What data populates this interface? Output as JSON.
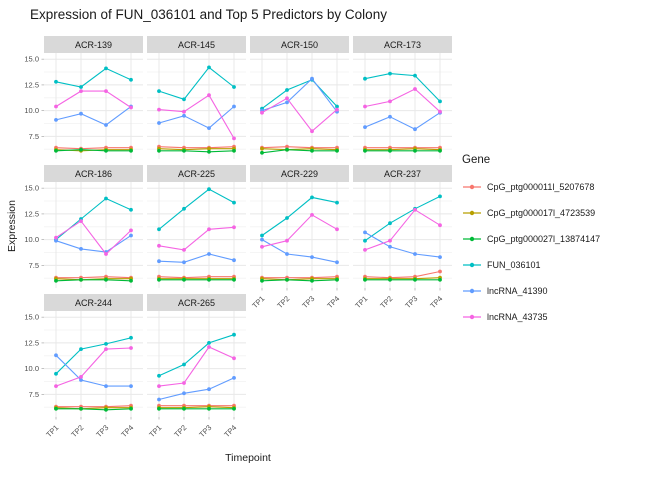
{
  "title": "Expression of FUN_036101 and Top 5 Predictors by Colony",
  "xlabel": "Timepoint",
  "ylabel": "Expression",
  "legend": {
    "title": "Gene"
  },
  "chart_data": {
    "type": "line",
    "title": "Expression of FUN_036101 and Top 5 Predictors by Colony",
    "xlabel": "Timepoint",
    "ylabel": "Expression",
    "legend_title": "Gene",
    "legend_position": "right",
    "grid": true,
    "x_categories": [
      "TP1",
      "TP2",
      "TP3",
      "TP4"
    ],
    "y_ticks": [
      "7.5",
      "10.0",
      "12.5",
      "15.0"
    ],
    "y_minor": [
      6.25,
      8.75,
      11.25,
      13.75
    ],
    "ylim": [
      5.3,
      15.6
    ],
    "strip_color": "#d9d9d9",
    "series": [
      {
        "name": "CpG_ptg000011l_5207678",
        "color": "#F8766D"
      },
      {
        "name": "CpG_ptg000017l_4723539",
        "color": "#B79F00"
      },
      {
        "name": "CpG_ptg000027l_13874147",
        "color": "#00BA38"
      },
      {
        "name": "FUN_036101",
        "color": "#00BFC4"
      },
      {
        "name": "lncRNA_41390",
        "color": "#619CFF"
      },
      {
        "name": "lncRNA_43735",
        "color": "#F564E3"
      }
    ],
    "facets": [
      {
        "name": "ACR-139",
        "values": [
          [
            6.4,
            6.3,
            6.4,
            6.4
          ],
          [
            6.2,
            6.1,
            6.2,
            6.2
          ],
          [
            6.1,
            6.2,
            6.1,
            6.1
          ],
          [
            12.8,
            12.3,
            14.1,
            13.0
          ],
          [
            9.1,
            9.7,
            8.6,
            10.4
          ],
          [
            10.4,
            11.9,
            11.9,
            10.3
          ]
        ]
      },
      {
        "name": "ACR-145",
        "values": [
          [
            6.5,
            6.4,
            6.4,
            6.5
          ],
          [
            6.3,
            6.2,
            6.3,
            6.3
          ],
          [
            6.1,
            6.1,
            6.0,
            6.1
          ],
          [
            11.9,
            11.1,
            14.2,
            12.3
          ],
          [
            8.8,
            9.5,
            8.3,
            10.4
          ],
          [
            10.1,
            9.9,
            11.5,
            7.3
          ]
        ]
      },
      {
        "name": "ACR-150",
        "values": [
          [
            6.4,
            6.5,
            6.4,
            6.4
          ],
          [
            6.3,
            6.2,
            6.3,
            6.2
          ],
          [
            5.9,
            6.2,
            6.1,
            6.1
          ],
          [
            10.2,
            12.0,
            13.0,
            10.4
          ],
          [
            10.0,
            10.8,
            13.1,
            9.9
          ],
          [
            9.8,
            11.2,
            8.0,
            10.1
          ]
        ]
      },
      {
        "name": "ACR-173",
        "values": [
          [
            6.4,
            6.4,
            6.4,
            6.4
          ],
          [
            6.2,
            6.2,
            6.3,
            6.2
          ],
          [
            6.1,
            6.1,
            6.1,
            6.1
          ],
          [
            13.1,
            13.6,
            13.4,
            10.9
          ],
          [
            8.4,
            9.4,
            8.2,
            9.8
          ],
          [
            10.4,
            10.9,
            12.1,
            9.9
          ]
        ]
      },
      {
        "name": "ACR-186",
        "values": [
          [
            6.3,
            6.3,
            6.4,
            6.3
          ],
          [
            6.2,
            6.1,
            6.2,
            6.2
          ],
          [
            6.0,
            6.1,
            6.1,
            6.0
          ],
          [
            10.0,
            12.0,
            14.0,
            12.9
          ],
          [
            9.9,
            9.1,
            8.8,
            10.4
          ],
          [
            10.2,
            11.8,
            8.6,
            10.9
          ]
        ]
      },
      {
        "name": "ACR-225",
        "values": [
          [
            6.4,
            6.3,
            6.4,
            6.4
          ],
          [
            6.2,
            6.2,
            6.2,
            6.2
          ],
          [
            6.1,
            6.1,
            6.1,
            6.1
          ],
          [
            11.0,
            13.0,
            14.9,
            13.6
          ],
          [
            7.9,
            7.8,
            8.6,
            8.0
          ],
          [
            9.4,
            9.0,
            11.0,
            11.2
          ]
        ]
      },
      {
        "name": "ACR-229",
        "values": [
          [
            6.3,
            6.3,
            6.3,
            6.4
          ],
          [
            6.2,
            6.1,
            6.2,
            6.2
          ],
          [
            6.0,
            6.1,
            6.0,
            6.1
          ],
          [
            10.4,
            12.1,
            14.1,
            13.6
          ],
          [
            10.0,
            8.6,
            8.3,
            7.8
          ],
          [
            9.3,
            9.9,
            12.4,
            11.0
          ]
        ]
      },
      {
        "name": "ACR-237",
        "values": [
          [
            6.4,
            6.3,
            6.4,
            6.9
          ],
          [
            6.2,
            6.2,
            6.2,
            6.3
          ],
          [
            6.1,
            6.1,
            6.1,
            6.1
          ],
          [
            9.9,
            11.6,
            13.0,
            14.2
          ],
          [
            10.7,
            9.3,
            8.6,
            8.3
          ],
          [
            9.0,
            9.9,
            12.9,
            11.4
          ]
        ]
      },
      {
        "name": "ACR-244",
        "values": [
          [
            6.3,
            6.3,
            6.3,
            6.4
          ],
          [
            6.2,
            6.1,
            6.2,
            6.2
          ],
          [
            6.1,
            6.1,
            6.0,
            6.1
          ],
          [
            9.5,
            11.9,
            12.4,
            13.0
          ],
          [
            11.3,
            8.9,
            8.3,
            8.3
          ],
          [
            8.3,
            9.2,
            11.9,
            12.0
          ]
        ]
      },
      {
        "name": "ACR-265",
        "values": [
          [
            6.4,
            6.4,
            6.4,
            6.4
          ],
          [
            6.2,
            6.2,
            6.3,
            6.2
          ],
          [
            6.1,
            6.1,
            6.1,
            6.1
          ],
          [
            9.3,
            10.4,
            12.5,
            13.3
          ],
          [
            7.0,
            7.6,
            8.0,
            9.1
          ],
          [
            8.3,
            8.6,
            12.1,
            11.0
          ]
        ]
      }
    ]
  }
}
